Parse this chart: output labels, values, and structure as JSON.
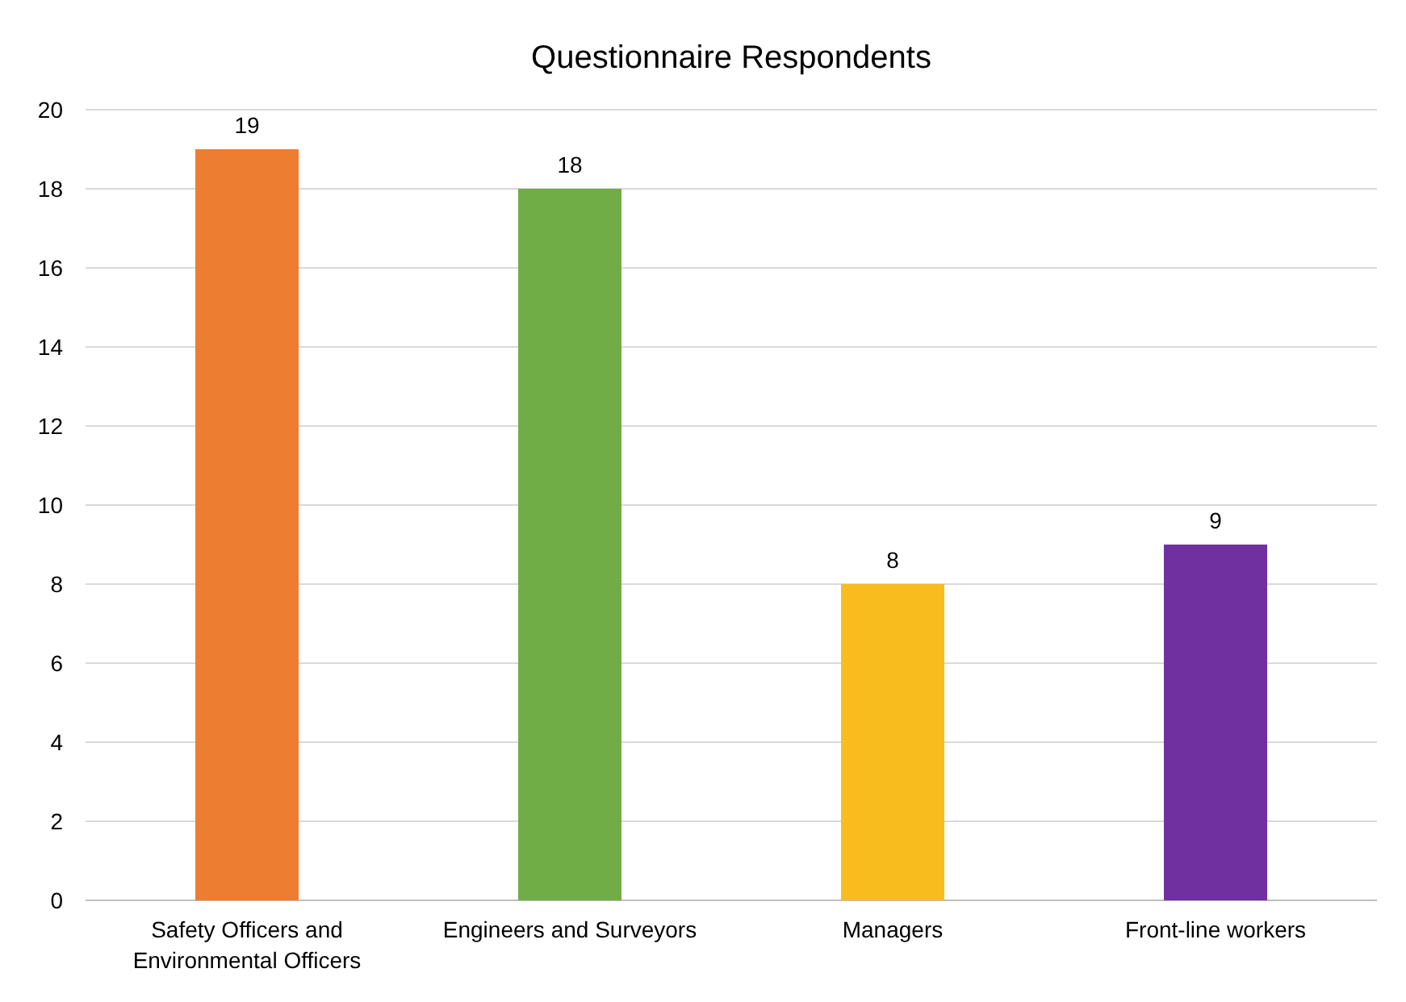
{
  "chart_data": {
    "type": "bar",
    "title": "Questionnaire Respondents",
    "categories": [
      "Safety Officers and Environmental Officers",
      "Engineers and Surveyors",
      "Managers",
      "Front-line workers"
    ],
    "values": [
      19,
      18,
      8,
      9
    ],
    "colors": [
      "#ed7d31",
      "#70ad47",
      "#f9bc1f",
      "#7030a0"
    ],
    "ylim": [
      0,
      20
    ],
    "yticks": [
      0,
      2,
      4,
      6,
      8,
      10,
      12,
      14,
      16,
      18,
      20
    ],
    "grid": "y",
    "data_labels": true
  }
}
